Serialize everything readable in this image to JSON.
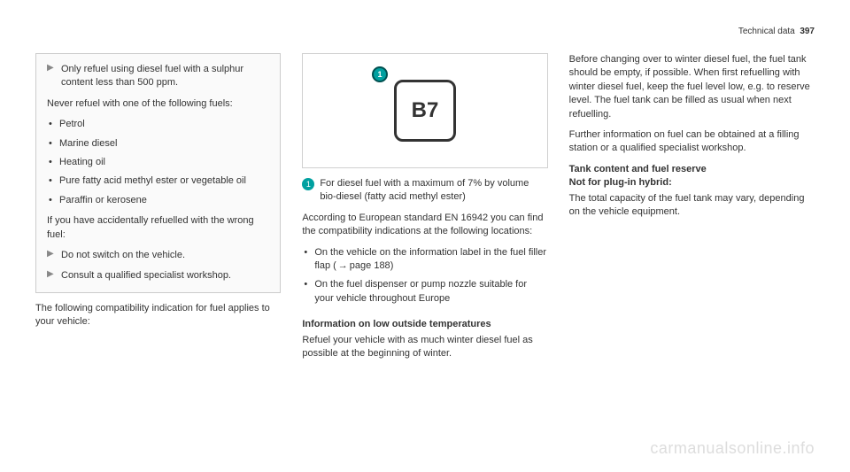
{
  "header": {
    "section": "Technical data",
    "page": "397"
  },
  "col1": {
    "box": {
      "step1": "Only refuel using diesel fuel with a sulphur content less than 500 ppm.",
      "never_text": "Never refuel with one of the following fuels:",
      "fuels": [
        "Petrol",
        "Marine diesel",
        "Heating oil",
        "Pure fatty acid methyl ester or vegetable oil",
        "Paraffin or kerosene"
      ],
      "wrong_fuel": "If you have accidentally refuelled with the wrong fuel:",
      "step2": "Do not switch on the vehicle.",
      "step3": "Consult a qualified specialist workshop."
    },
    "after_box": "The following compatibility indication for fuel applies to your vehicle:"
  },
  "col2": {
    "figure_label": "B7",
    "circle": "1",
    "info_text": "For diesel fuel with a maximum of 7% by volume bio-diesel (fatty acid methyl ester)",
    "euro_text": "According to European standard EN 16942 you can find the compatibility indications at the following locations:",
    "locations": [
      {
        "text_before": "On the vehicle on the information label in the fuel filler flap (",
        "page_ref": "page 188",
        "text_after": ")"
      },
      {
        "text_before": "On the fuel dispenser or pump nozzle suitable for your vehicle throughout Europe",
        "page_ref": "",
        "text_after": ""
      }
    ],
    "low_temp_heading": "Information on low outside temperatures",
    "low_temp_text": "Refuel your vehicle with as much winter diesel fuel as possible at the beginning of winter."
  },
  "col3": {
    "winter_text": "Before changing over to winter diesel fuel, the fuel tank should be empty, if possible. When first refuelling with winter diesel fuel, keep the fuel level low, e.g. to reserve level. The fuel tank can be filled as usual when next refuelling.",
    "further_info": "Further information on fuel can be obtained at a filling station or a qualified specialist workshop.",
    "tank_heading1": "Tank content and fuel reserve",
    "tank_heading2": "Not for plug-in hybrid:",
    "tank_text": "The total capacity of the fuel tank may vary, depending on the vehicle equipment."
  },
  "watermark": "carmanualsonline.info",
  "colors": {
    "text": "#333333",
    "box_border": "#cccccc",
    "box_bg": "#fafafa",
    "teal": "#00a0a0",
    "watermark": "#dddddd"
  }
}
